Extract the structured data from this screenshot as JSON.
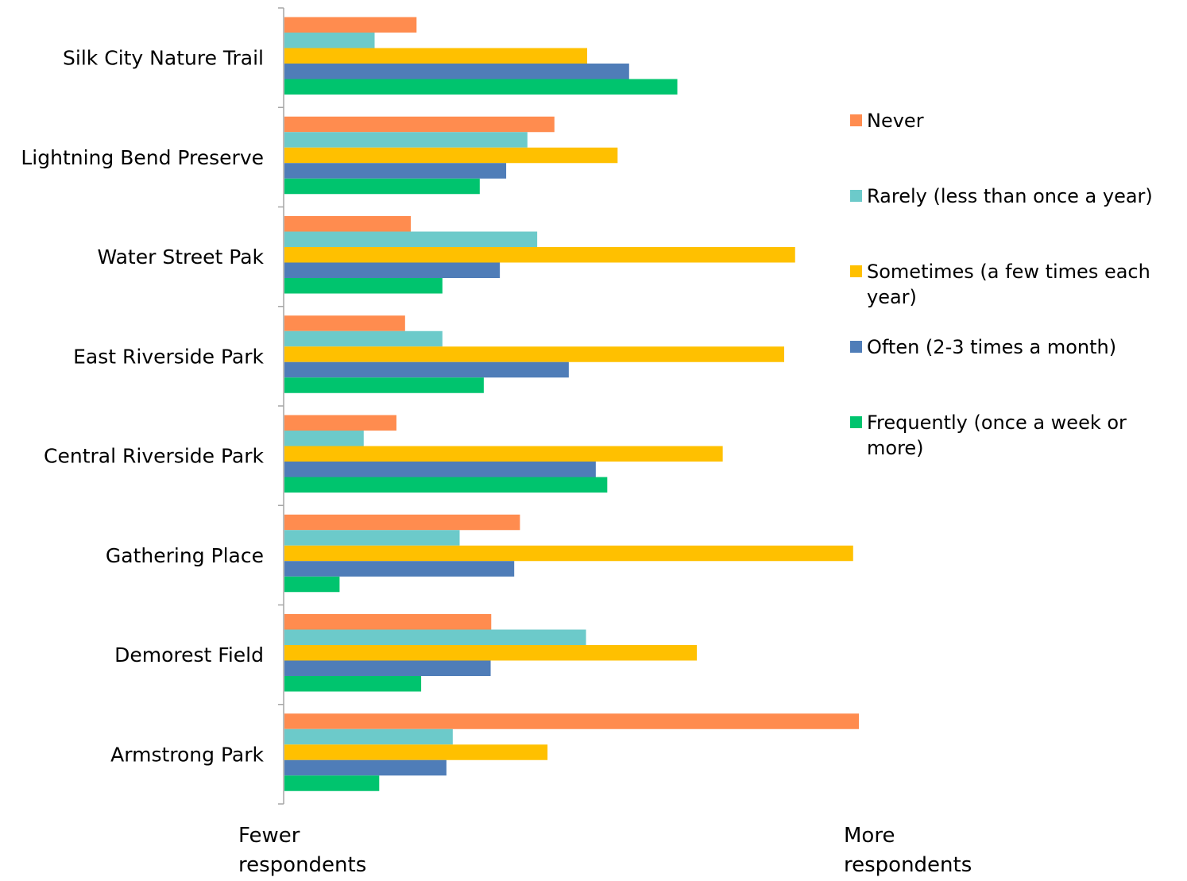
{
  "chart_data": {
    "type": "bar",
    "orientation": "horizontal",
    "title": "",
    "xlabel": "",
    "ylabel": "",
    "xlim": [
      0,
      100
    ],
    "grid": false,
    "legend_position": "right",
    "axis_notes": {
      "left": [
        "Fewer",
        "respondents"
      ],
      "right": [
        "More",
        "respondents"
      ]
    },
    "categories": [
      "Silk City Nature Trail",
      "Lightning Bend Preserve",
      "Water Street Pak",
      "East Riverside Park",
      "Central Riverside Park",
      "Gathering Place",
      "Demorest Field",
      "Armstrong Park"
    ],
    "series": [
      {
        "name": "Never",
        "legend_lines": [
          "Never"
        ],
        "color": "#FF8C4F",
        "values": [
          23,
          47,
          22,
          21,
          19.5,
          41,
          36,
          100
        ]
      },
      {
        "name": "Rarely (less than once a year)",
        "legend_lines": [
          "Rarely (less than once a year)"
        ],
        "color": "#6CCACA",
        "values": [
          15.7,
          42.3,
          44,
          27.5,
          13.8,
          30.5,
          52.5,
          29.3
        ]
      },
      {
        "name": "Sometimes (a few times each year)",
        "legend_lines": [
          "Sometimes (a few times each",
          "year)"
        ],
        "color": "#FFC000",
        "values": [
          52.7,
          58,
          88.9,
          87,
          76.3,
          99,
          71.8,
          45.8
        ]
      },
      {
        "name": "Often (2-3 times a month)",
        "legend_lines": [
          "Often (2-3 times a month)"
        ],
        "color": "#4F7DB8",
        "values": [
          60,
          38.6,
          37.5,
          49.5,
          54.2,
          40,
          35.9,
          28.2
        ]
      },
      {
        "name": "Frequently (once a week or more)",
        "legend_lines": [
          "Frequently (once a week or",
          "more)"
        ],
        "color": "#00C46E",
        "values": [
          68.4,
          34,
          27.5,
          34.7,
          56.2,
          9.6,
          23.8,
          16.5
        ]
      }
    ]
  }
}
